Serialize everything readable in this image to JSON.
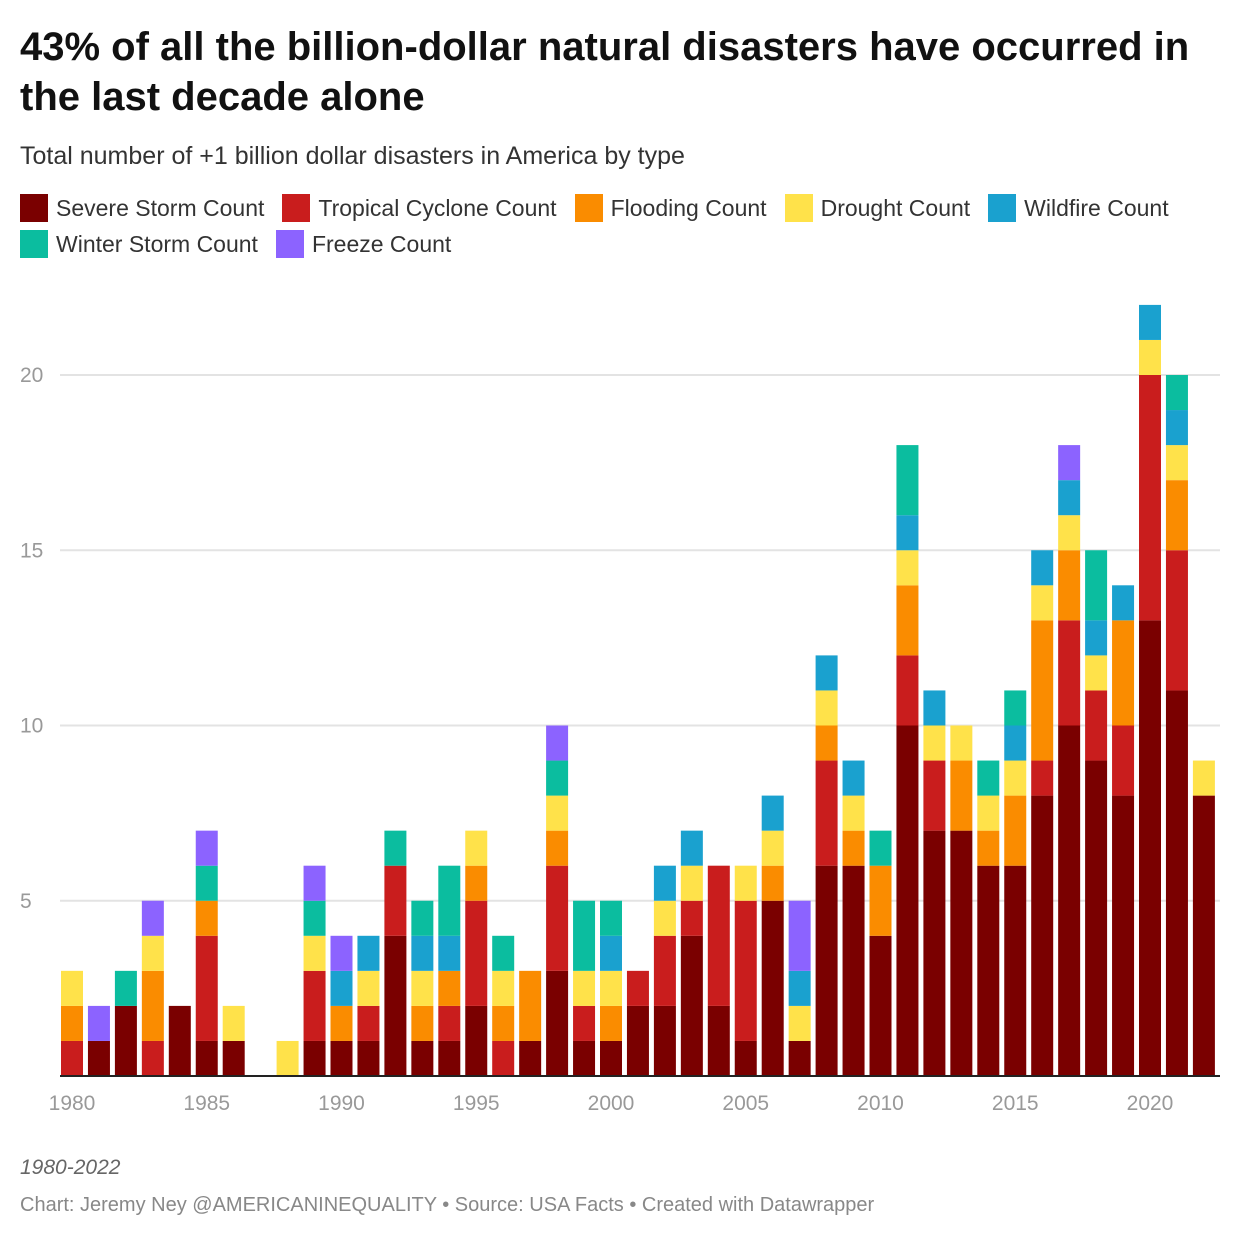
{
  "title": "43% of all the billion-dollar natural disasters have occurred in the last decade alone",
  "subtitle": "Total number of +1 billion dollar disasters in America by type",
  "note": "1980-2022",
  "source": "Chart: Jeremy Ney @AMERICANINEQUALITY • Source: USA Facts • Created with Datawrapper",
  "chart_data": {
    "type": "bar",
    "stacked": true,
    "grid": true,
    "legend_placement": "top",
    "ylim": [
      0,
      22
    ],
    "yticks": [
      5,
      10,
      15,
      20
    ],
    "xticks": [
      "1980",
      "1985",
      "1990",
      "1995",
      "2000",
      "2005",
      "2010",
      "2015",
      "2020"
    ],
    "categories": [
      1980,
      1981,
      1982,
      1983,
      1984,
      1985,
      1986,
      1987,
      1988,
      1989,
      1990,
      1991,
      1992,
      1993,
      1994,
      1995,
      1996,
      1997,
      1998,
      1999,
      2000,
      2001,
      2002,
      2003,
      2004,
      2005,
      2006,
      2007,
      2008,
      2009,
      2010,
      2011,
      2012,
      2013,
      2014,
      2015,
      2016,
      2017,
      2018,
      2019,
      2020,
      2021,
      2022
    ],
    "series": [
      {
        "name": "Severe Storm Count",
        "color": "#7a0000",
        "values": [
          0,
          1,
          2,
          0,
          2,
          1,
          1,
          0,
          0,
          1,
          1,
          1,
          4,
          1,
          1,
          2,
          0,
          1,
          3,
          1,
          1,
          2,
          2,
          4,
          2,
          1,
          5,
          1,
          6,
          6,
          4,
          10,
          7,
          7,
          6,
          6,
          8,
          10,
          9,
          8,
          13,
          11,
          8
        ]
      },
      {
        "name": "Tropical Cyclone Count",
        "color": "#c91d1d",
        "values": [
          1,
          0,
          0,
          1,
          0,
          3,
          0,
          0,
          0,
          2,
          0,
          1,
          2,
          0,
          1,
          3,
          1,
          0,
          3,
          1,
          0,
          1,
          2,
          1,
          4,
          4,
          0,
          0,
          3,
          0,
          0,
          2,
          2,
          0,
          0,
          0,
          1,
          3,
          2,
          2,
          7,
          4,
          0
        ]
      },
      {
        "name": "Flooding Count",
        "color": "#fa8c00",
        "values": [
          1,
          0,
          0,
          2,
          0,
          1,
          0,
          0,
          0,
          0,
          1,
          0,
          0,
          1,
          1,
          1,
          1,
          2,
          1,
          0,
          1,
          0,
          0,
          0,
          0,
          0,
          1,
          0,
          1,
          1,
          2,
          2,
          0,
          2,
          1,
          2,
          4,
          2,
          0,
          3,
          0,
          2,
          0
        ]
      },
      {
        "name": "Drought Count",
        "color": "#ffe24a",
        "values": [
          1,
          0,
          0,
          1,
          0,
          0,
          1,
          0,
          1,
          1,
          0,
          1,
          0,
          1,
          0,
          1,
          1,
          0,
          1,
          1,
          1,
          0,
          1,
          1,
          0,
          1,
          1,
          1,
          1,
          1,
          0,
          1,
          1,
          1,
          1,
          1,
          1,
          1,
          1,
          0,
          1,
          1,
          1
        ]
      },
      {
        "name": "Wildfire Count",
        "color": "#1aa1cf",
        "values": [
          0,
          0,
          0,
          0,
          0,
          0,
          0,
          0,
          0,
          0,
          1,
          1,
          0,
          1,
          1,
          0,
          0,
          0,
          0,
          0,
          1,
          0,
          1,
          1,
          0,
          0,
          1,
          1,
          1,
          1,
          0,
          1,
          1,
          0,
          0,
          1,
          1,
          1,
          1,
          1,
          1,
          1,
          0
        ]
      },
      {
        "name": "Winter Storm Count",
        "color": "#0bbd9f",
        "values": [
          0,
          0,
          1,
          0,
          0,
          1,
          0,
          0,
          0,
          1,
          0,
          0,
          1,
          1,
          2,
          0,
          1,
          0,
          1,
          2,
          1,
          0,
          0,
          0,
          0,
          0,
          0,
          0,
          0,
          0,
          1,
          2,
          0,
          0,
          1,
          1,
          0,
          0,
          2,
          0,
          0,
          1,
          0
        ]
      },
      {
        "name": "Freeze Count",
        "color": "#8c63ff",
        "values": [
          0,
          1,
          0,
          1,
          0,
          1,
          0,
          0,
          0,
          1,
          1,
          0,
          0,
          0,
          0,
          0,
          0,
          0,
          1,
          0,
          0,
          0,
          0,
          0,
          0,
          0,
          0,
          2,
          0,
          0,
          0,
          0,
          0,
          0,
          0,
          0,
          0,
          1,
          0,
          0,
          0,
          0,
          0
        ]
      }
    ]
  }
}
